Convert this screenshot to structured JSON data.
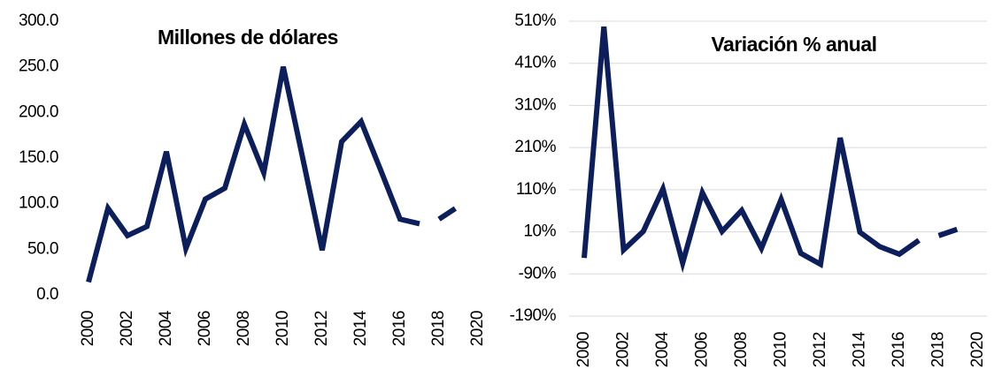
{
  "chart_data": [
    {
      "type": "line",
      "title": "Millones de dólares",
      "x": [
        2000,
        2001,
        2002,
        2003,
        2004,
        2005,
        2006,
        2007,
        2008,
        2009,
        2010,
        2011,
        2012,
        2013,
        2014,
        2015,
        2016,
        2017,
        2018,
        2019
      ],
      "series": [
        {
          "color": "#0c1f5c",
          "values": [
            14,
            95,
            65,
            75,
            157,
            51,
            105,
            117,
            187,
            134,
            250,
            150,
            49,
            168,
            190,
            137,
            83,
            78,
            null,
            null
          ]
        },
        {
          "color": "#0c1f5c",
          "dashed": true,
          "values": [
            null,
            null,
            null,
            null,
            null,
            null,
            null,
            null,
            null,
            null,
            null,
            null,
            null,
            null,
            null,
            null,
            null,
            null,
            83,
            97
          ]
        }
      ],
      "xlim": [
        2000,
        2020
      ],
      "xticks": [
        2000,
        2002,
        2004,
        2006,
        2008,
        2010,
        2012,
        2014,
        2016,
        2018,
        2020
      ],
      "ylim": [
        0,
        300
      ],
      "yticks": [
        {
          "value": 0,
          "label": "0.0"
        },
        {
          "value": 50,
          "label": "50.0"
        },
        {
          "value": 100,
          "label": "100.0"
        },
        {
          "value": 150,
          "label": "150.0"
        },
        {
          "value": 200,
          "label": "200.0"
        },
        {
          "value": 250,
          "label": "250.0"
        },
        {
          "value": 300,
          "label": "300.0"
        }
      ],
      "grid": false
    },
    {
      "type": "line",
      "title": "Variación % anual",
      "x": [
        2000,
        2001,
        2002,
        2003,
        2004,
        2005,
        2006,
        2007,
        2008,
        2009,
        2010,
        2011,
        2012,
        2013,
        2014,
        2015,
        2016,
        2017,
        2018,
        2019
      ],
      "series": [
        {
          "color": "#0c1f5c",
          "values": [
            -52,
            497,
            -33,
            11,
            112,
            -64,
            103,
            11,
            61,
            -29,
            87,
            -41,
            -67,
            233,
            9,
            -25,
            -43,
            -10,
            null,
            null
          ]
        },
        {
          "color": "#0c1f5c",
          "dashed": true,
          "values": [
            null,
            null,
            null,
            null,
            null,
            null,
            null,
            null,
            null,
            null,
            null,
            null,
            null,
            null,
            null,
            null,
            null,
            null,
            1,
            17
          ]
        }
      ],
      "xlim": [
        2000,
        2020
      ],
      "xticks": [
        2000,
        2002,
        2004,
        2006,
        2008,
        2010,
        2012,
        2014,
        2016,
        2018,
        2020
      ],
      "ylim": [
        -190,
        510
      ],
      "yticks": [
        {
          "value": -190,
          "label": "-190%"
        },
        {
          "value": -90,
          "label": "-90%"
        },
        {
          "value": 10,
          "label": "10%"
        },
        {
          "value": 110,
          "label": "110%"
        },
        {
          "value": 210,
          "label": "210%"
        },
        {
          "value": 310,
          "label": "310%"
        },
        {
          "value": 410,
          "label": "410%"
        },
        {
          "value": 510,
          "label": "510%"
        }
      ],
      "grid": true
    }
  ]
}
